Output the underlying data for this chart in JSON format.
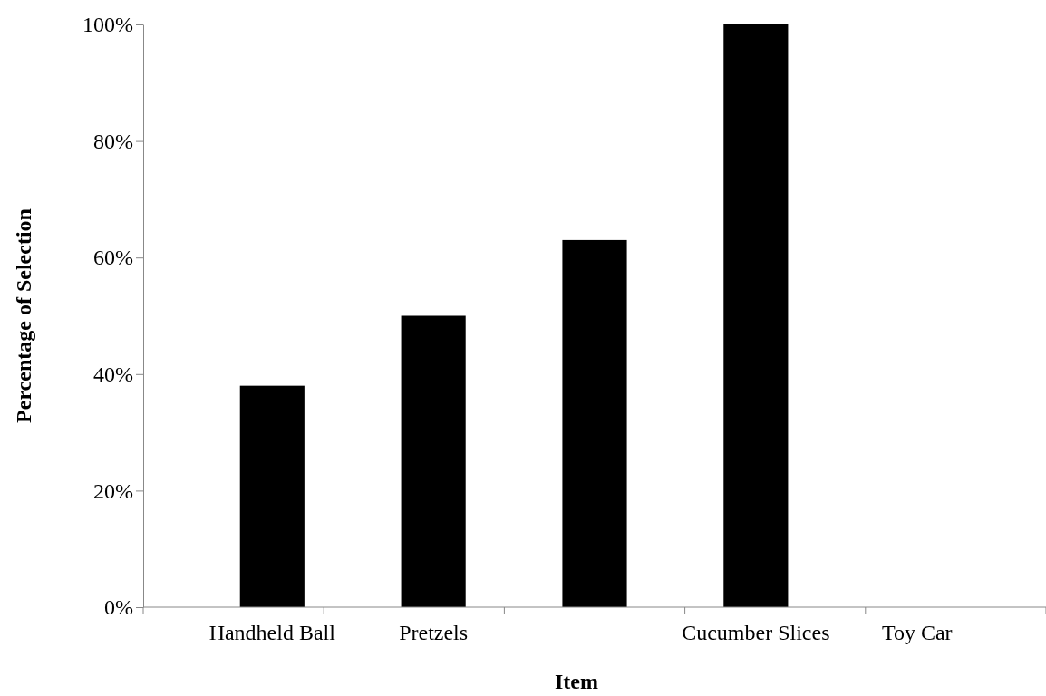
{
  "chart_data": {
    "type": "bar",
    "xlabel": "Item",
    "ylabel": "Percentage of Selection",
    "categories": [
      "Handheld Ball",
      "Pretzels",
      null,
      "Cucumber Slices",
      "Toy Car"
    ],
    "values": [
      38,
      50,
      63,
      100,
      0
    ],
    "color": "#000000",
    "ylim": [
      0,
      100
    ],
    "yticks": [
      {
        "value": 0,
        "label": "0%"
      },
      {
        "value": 20,
        "label": "20%"
      },
      {
        "value": 40,
        "label": "40%"
      },
      {
        "value": 60,
        "label": "60%"
      },
      {
        "value": 80,
        "label": "80%"
      },
      {
        "value": 100,
        "label": "100%"
      }
    ],
    "grid": false
  }
}
